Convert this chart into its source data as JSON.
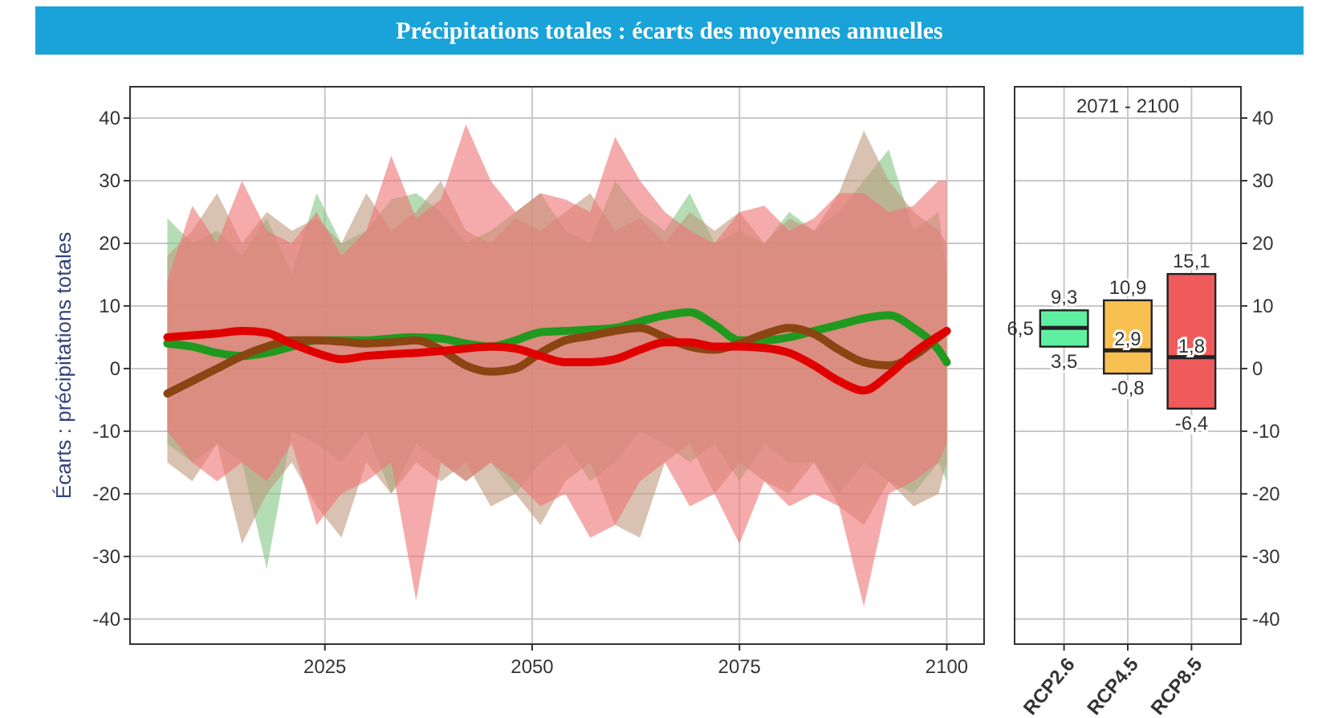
{
  "chart_data": [
    {
      "type": "line",
      "title": "Précipitations totales : écarts des moyennes annuelles",
      "ylabel": "Écarts : précipitations totales",
      "x": [
        2006,
        2009,
        2012,
        2015,
        2018,
        2021,
        2024,
        2027,
        2030,
        2033,
        2036,
        2039,
        2042,
        2045,
        2048,
        2051,
        2054,
        2057,
        2060,
        2063,
        2066,
        2069,
        2072,
        2075,
        2078,
        2081,
        2084,
        2087,
        2090,
        2093,
        2096,
        2099,
        2100
      ],
      "series": [
        {
          "color": "#1f9a1f",
          "values": [
            4,
            3.5,
            2.5,
            2,
            2.5,
            3.5,
            4.5,
            4.5,
            4.5,
            4.8,
            5,
            4.8,
            4,
            3.5,
            4.5,
            5.8,
            6,
            6.2,
            6.5,
            7.5,
            8.5,
            9,
            7,
            4.5,
            4.5,
            5,
            6,
            7,
            8,
            8.5,
            6.5,
            3,
            1
          ],
          "upper": [
            24,
            20,
            22,
            18,
            24,
            15,
            28,
            20,
            22,
            27,
            28,
            25,
            20,
            22,
            25,
            28,
            22,
            20,
            30,
            25,
            22,
            28,
            20,
            22,
            20,
            25,
            22,
            25,
            30,
            35,
            22,
            25,
            15
          ],
          "lower": [
            -12,
            -15,
            -12,
            -15,
            -32,
            -10,
            -12,
            -15,
            -10,
            -20,
            -12,
            -15,
            -18,
            -15,
            -20,
            -15,
            -12,
            -18,
            -15,
            -10,
            -12,
            -15,
            -12,
            -18,
            -12,
            -15,
            -15,
            -20,
            -15,
            -18,
            -20,
            -15,
            -18
          ]
        },
        {
          "color": "#8b4513",
          "values": [
            -4,
            -2,
            0,
            2,
            3.5,
            4.5,
            4.5,
            4.3,
            4,
            4.2,
            4.5,
            3,
            0.5,
            -0.5,
            0,
            2.5,
            4.5,
            5.2,
            6,
            6.5,
            5,
            3.5,
            3,
            4,
            5.5,
            6.5,
            5.5,
            3,
            1,
            0.5,
            2,
            5,
            6
          ],
          "upper": [
            18,
            22,
            28,
            20,
            25,
            22,
            24,
            20,
            28,
            22,
            25,
            30,
            22,
            20,
            24,
            22,
            25,
            28,
            22,
            24,
            20,
            25,
            22,
            25,
            20,
            24,
            22,
            28,
            38,
            30,
            25,
            22,
            20
          ],
          "lower": [
            -15,
            -18,
            -12,
            -28,
            -20,
            -15,
            -22,
            -27,
            -15,
            -20,
            -15,
            -18,
            -15,
            -22,
            -20,
            -25,
            -18,
            -15,
            -25,
            -27,
            -15,
            -12,
            -20,
            -15,
            -18,
            -20,
            -15,
            -22,
            -25,
            -18,
            -22,
            -20,
            -15
          ]
        },
        {
          "color": "#e00000",
          "values": [
            5,
            5.3,
            5.6,
            6,
            5.7,
            4,
            2.5,
            1.5,
            2,
            2.3,
            2.5,
            2.8,
            3.2,
            3.5,
            3.2,
            2,
            1,
            1,
            1.5,
            3,
            4.2,
            4.2,
            3.5,
            3.5,
            3.3,
            2.5,
            0.5,
            -2,
            -3.5,
            -1,
            2.5,
            5.2,
            6
          ],
          "upper": [
            14,
            26,
            20,
            30,
            22,
            20,
            25,
            18,
            22,
            34,
            24,
            27,
            39,
            30,
            25,
            28,
            27,
            25,
            37,
            30,
            25,
            22,
            20,
            25,
            26,
            22,
            24,
            28,
            28,
            25,
            26,
            30,
            30
          ],
          "lower": [
            -10,
            -15,
            -18,
            -15,
            -18,
            -12,
            -25,
            -20,
            -18,
            -15,
            -37,
            -15,
            -18,
            -15,
            -18,
            -22,
            -20,
            -27,
            -25,
            -18,
            -15,
            -22,
            -20,
            -28,
            -18,
            -22,
            -20,
            -22,
            -38,
            -20,
            -18,
            -15,
            -12
          ]
        }
      ],
      "xlim": [
        2001.5,
        2104.5
      ],
      "xticks": [
        2025,
        2050,
        2075,
        2100
      ],
      "ylim": [
        -44,
        45
      ],
      "yticks": [
        -40,
        -30,
        -20,
        -10,
        0,
        10,
        20,
        30,
        40
      ],
      "grid": true
    },
    {
      "type": "box",
      "title": "2071 - 2100",
      "categories": [
        "RCP2.6",
        "RCP4.5",
        "RCP8.5"
      ],
      "boxes": [
        {
          "low": 3.5,
          "q1": 3.5,
          "median": 6.5,
          "q3": 9.3,
          "high": 9.3
        },
        {
          "low": -0.8,
          "q1": -0.8,
          "median": 2.9,
          "q3": 10.9,
          "high": 10.9
        },
        {
          "low": -6.4,
          "q1": -6.4,
          "median": 1.8,
          "q3": 15.1,
          "high": 15.1
        }
      ],
      "colors": [
        "#5ef0a0",
        "#f8c050",
        "#f05a5a"
      ],
      "annotations": [
        {
          "text": "9,3",
          "x": "RCP2.6",
          "y": 9.3
        },
        {
          "text": "6,5",
          "x": "RCP2.6",
          "y": 6.5
        },
        {
          "text": "3,5",
          "x": "RCP2.6",
          "y": 3.5
        },
        {
          "text": "10,9",
          "x": "RCP4.5",
          "y": 10.9
        },
        {
          "text": "2,9",
          "x": "RCP4.5",
          "y": 2.9
        },
        {
          "text": "-0,8",
          "x": "RCP4.5",
          "y": -0.8
        },
        {
          "text": "15,1",
          "x": "RCP8.5",
          "y": 15.1
        },
        {
          "text": "1,8",
          "x": "RCP8.5",
          "y": 1.8
        },
        {
          "text": "-6,4",
          "x": "RCP8.5",
          "y": -6.4
        }
      ],
      "ylim": [
        -44,
        45
      ],
      "yticks": [
        -40,
        -30,
        -20,
        -10,
        0,
        10,
        20,
        30,
        40
      ],
      "grid": true
    }
  ]
}
